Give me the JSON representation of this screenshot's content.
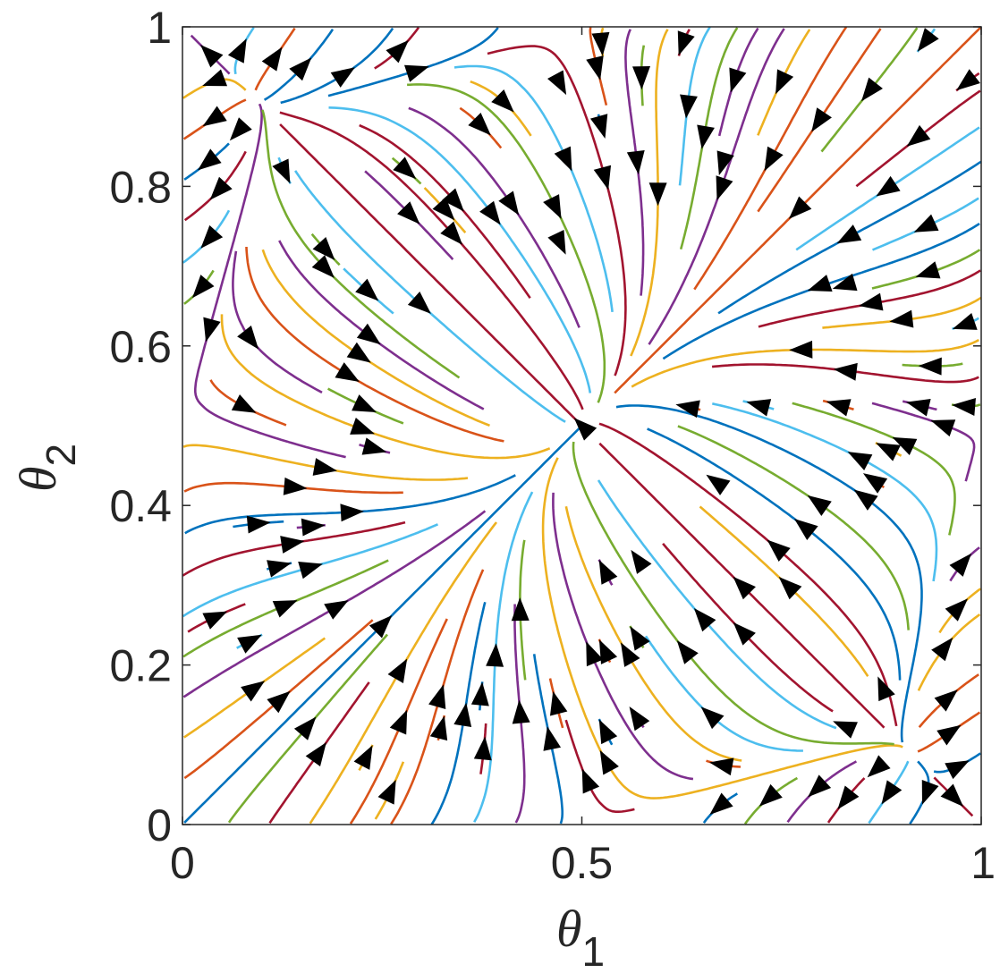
{
  "chart_data": {
    "type": "streamline",
    "title": "",
    "xlabel": {
      "symbol": "θ",
      "subscript": "1"
    },
    "ylabel": {
      "symbol": "θ",
      "subscript": "2"
    },
    "xlim": [
      0,
      1
    ],
    "ylim": [
      0,
      1
    ],
    "xticks": [
      0,
      0.5,
      1
    ],
    "xtick_labels": [
      "0",
      "0.5",
      "1"
    ],
    "yticks": [
      0,
      0.2,
      0.4,
      0.6,
      0.8,
      1
    ],
    "ytick_labels": [
      "0",
      "0.2",
      "0.4",
      "0.6",
      "0.8",
      "1"
    ],
    "grid": false,
    "legend": "none",
    "stable_fixed_point": [
      0.5,
      0.5
    ],
    "arrow_color": "#000000",
    "line_colors": [
      "#0072BD",
      "#D95319",
      "#EDB120",
      "#7E2F8E",
      "#77AC30",
      "#4DBEEE",
      "#A2142F"
    ]
  }
}
